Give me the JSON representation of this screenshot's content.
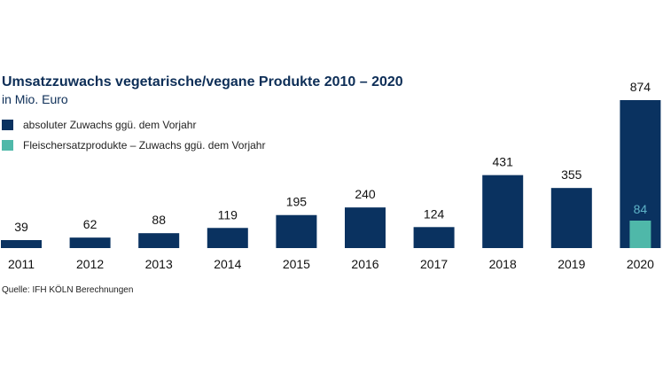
{
  "chart_data": {
    "type": "bar",
    "title": "Umsatzzuwachs vegetarische/vegane Produkte 2010 – 2020",
    "subtitle": "in Mio. Euro",
    "categories": [
      "2011",
      "2012",
      "2013",
      "2014",
      "2015",
      "2016",
      "2017",
      "2018",
      "2019",
      "2020"
    ],
    "series": [
      {
        "name": "absoluter Zuwachs ggü. dem Vorjahr",
        "color": "#0a3260",
        "values": [
          39,
          62,
          88,
          119,
          195,
          240,
          124,
          431,
          355,
          874
        ]
      },
      {
        "name": "Fleischersatzprodukte – Zuwachs ggü. dem Vorjahr",
        "color": "#4fb8a9",
        "values": [
          null,
          null,
          null,
          null,
          null,
          null,
          null,
          null,
          null,
          84
        ]
      }
    ],
    "legend": "top-left",
    "grid": false,
    "source": "Quelle: IFH KÖLN Berechnungen"
  }
}
